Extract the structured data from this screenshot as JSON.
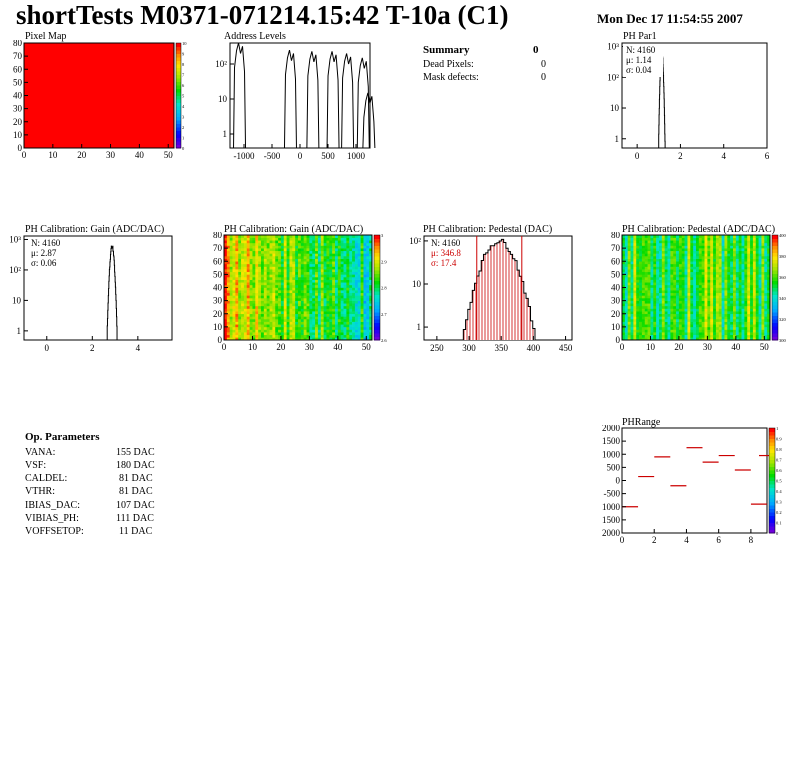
{
  "header": {
    "title": "shortTests M0371-071214.15:42 T-10a (C1)",
    "date": "Mon Dec 17 11:54:55 2007"
  },
  "summary": {
    "title": "Summary",
    "title_value": "0",
    "rows": [
      {
        "label": "Dead Pixels:",
        "value": "0"
      },
      {
        "label": "Mask defects:",
        "value": "0"
      }
    ]
  },
  "params": {
    "title": "Op. Parameters",
    "rows": [
      {
        "label": "VANA:",
        "value": "155 DAC"
      },
      {
        "label": "VSF:",
        "value": "180 DAC"
      },
      {
        "label": "CALDEL:",
        "value": "81 DAC"
      },
      {
        "label": "VTHR:",
        "value": "81 DAC"
      },
      {
        "label": "IBIAS_DAC:",
        "value": "107 DAC"
      },
      {
        "label": "VIBIAS_PH:",
        "value": "111 DAC"
      },
      {
        "label": "VOFFSETOP:",
        "value": "11 DAC"
      }
    ]
  },
  "colors": {
    "pixelmap_fill": "#ff0000",
    "pedestal_hist": "#cc0000",
    "phrange_marks": "#cc0000"
  },
  "chart_data": [
    {
      "id": "pixelmap",
      "type": "heatmap",
      "title": "Pixel Map",
      "xticks": [
        "0",
        "10",
        "20",
        "30",
        "40",
        "50"
      ],
      "yticks": [
        "0",
        "10",
        "20",
        "30",
        "40",
        "50",
        "60",
        "70",
        "80"
      ],
      "xlim": [
        0,
        52
      ],
      "ylim": [
        0,
        80
      ],
      "uniform_value": 10,
      "zticks": [
        "0",
        "1",
        "2",
        "3",
        "4",
        "5",
        "6",
        "7",
        "8",
        "9",
        "10"
      ]
    },
    {
      "id": "address",
      "type": "bar",
      "title": "Address Levels",
      "xticks": [
        "-1000",
        "-500",
        "0",
        "500",
        "1000"
      ],
      "yticks": [
        "1",
        "10",
        "10²"
      ],
      "xlim": [
        -1250,
        1250
      ],
      "ylog": true,
      "peaks": [
        {
          "x": -1080,
          "y": 400
        },
        {
          "x": -170,
          "y": 250
        },
        {
          "x": 230,
          "y": 230
        },
        {
          "x": 590,
          "y": 230
        },
        {
          "x": 850,
          "y": 200
        },
        {
          "x": 1130,
          "y": 150
        },
        {
          "x": 1230,
          "y": 15
        }
      ]
    },
    {
      "id": "phpar1",
      "type": "bar",
      "title": "PH Par1",
      "stats": [
        "N: 4160",
        "μ: 1.14",
        "σ: 0.04"
      ],
      "xticks": [
        "0",
        "2",
        "4",
        "6"
      ],
      "yticks": [
        "1",
        "10",
        "10²",
        "10³"
      ],
      "xlim": [
        -0.7,
        6
      ],
      "ylog": true,
      "peak": {
        "mean": 1.14,
        "sigma": 0.04,
        "max": 700
      }
    },
    {
      "id": "gain1d",
      "type": "bar",
      "title": "PH Calibration: Gain (ADC/DAC)",
      "stats": [
        "N: 4160",
        "μ: 2.87",
        "σ: 0.06"
      ],
      "xticks": [
        "0",
        "2",
        "4"
      ],
      "yticks": [
        "1",
        "10",
        "10²",
        "10³"
      ],
      "xlim": [
        -1,
        5.5
      ],
      "ylog": true,
      "peak": {
        "mean": 2.87,
        "sigma": 0.06,
        "max": 600
      }
    },
    {
      "id": "gain2d",
      "type": "heatmap",
      "title": "PH Calibration: Gain (ADC/DAC)",
      "xticks": [
        "0",
        "10",
        "20",
        "30",
        "40",
        "50"
      ],
      "yticks": [
        "0",
        "10",
        "20",
        "30",
        "40",
        "50",
        "60",
        "70",
        "80"
      ],
      "zticks": [
        "2.6",
        "2.7",
        "2.8",
        "2.9",
        "3"
      ],
      "zlim": [
        2.55,
        3.0
      ]
    },
    {
      "id": "pedestal1d",
      "type": "bar",
      "title": "PH Calibration: Pedestal (DAC)",
      "stats": [
        "N: 4160",
        "μ: 346.8",
        "σ: 17.4"
      ],
      "xticks": [
        "250",
        "300",
        "350",
        "400",
        "450"
      ],
      "yticks": [
        "1",
        "10",
        "10²"
      ],
      "xlim": [
        230,
        460
      ],
      "ylog": true,
      "peak": {
        "mean": 346.8,
        "sigma": 17.4,
        "max": 100
      },
      "cut_lines": [
        312,
        382
      ]
    },
    {
      "id": "pedestal2d",
      "type": "heatmap",
      "title": "PH Calibration: Pedestal (ADC/DAC)",
      "xticks": [
        "0",
        "10",
        "20",
        "30",
        "40",
        "50"
      ],
      "yticks": [
        "0",
        "10",
        "20",
        "30",
        "40",
        "50",
        "60",
        "70",
        "80"
      ],
      "zticks": [
        "300",
        "320",
        "340",
        "360",
        "380",
        "400"
      ],
      "zlim": [
        290,
        405
      ]
    },
    {
      "id": "phrange",
      "type": "scatter",
      "title": "PHRange",
      "xticks": [
        "0",
        "2",
        "4",
        "6",
        "8"
      ],
      "yticks": [
        "2000",
        "1500",
        "1000",
        "500",
        "0",
        "-500",
        "1000",
        "1500",
        "2000"
      ],
      "xlim": [
        0,
        9
      ],
      "ylim": [
        -2000,
        2000
      ],
      "zticks": [
        "0",
        "0.1",
        "0.2",
        "0.3",
        "0.4",
        "0.5",
        "0.6",
        "0.7",
        "0.8",
        "0.9",
        "1"
      ],
      "points": [
        {
          "x": 0.5,
          "y": -1000
        },
        {
          "x": 1.5,
          "y": 150
        },
        {
          "x": 2.5,
          "y": 900
        },
        {
          "x": 3.5,
          "y": -200
        },
        {
          "x": 4.5,
          "y": 1250
        },
        {
          "x": 5.5,
          "y": 700
        },
        {
          "x": 6.5,
          "y": 950
        },
        {
          "x": 7.5,
          "y": 400
        },
        {
          "x": 8.5,
          "y": -900
        },
        {
          "x": 9.0,
          "y": 950
        }
      ]
    }
  ]
}
